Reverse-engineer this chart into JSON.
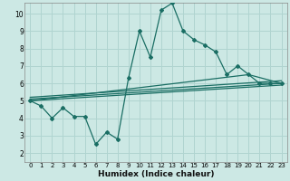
{
  "xlabel": "Humidex (Indice chaleur)",
  "bg_color": "#cce8e4",
  "grid_color": "#b0d4d0",
  "line_color": "#1a6e64",
  "xlim": [
    -0.5,
    23.5
  ],
  "ylim": [
    1.5,
    10.6
  ],
  "xticks": [
    0,
    1,
    2,
    3,
    4,
    5,
    6,
    7,
    8,
    9,
    10,
    11,
    12,
    13,
    14,
    15,
    16,
    17,
    18,
    19,
    20,
    21,
    22,
    23
  ],
  "yticks": [
    2,
    3,
    4,
    5,
    6,
    7,
    8,
    9,
    10
  ],
  "line1_x": [
    0,
    1,
    2,
    3,
    4,
    5,
    6,
    7,
    8,
    9,
    10,
    11,
    12,
    13,
    14,
    15,
    16,
    17,
    18,
    19,
    20,
    21,
    22,
    23
  ],
  "line1_y": [
    5.0,
    4.7,
    4.0,
    4.6,
    4.1,
    4.1,
    2.5,
    3.2,
    2.8,
    6.3,
    9.0,
    7.5,
    10.2,
    10.6,
    9.0,
    8.5,
    8.2,
    7.8,
    6.5,
    7.0,
    6.5,
    6.0,
    6.0,
    6.0
  ],
  "line2_x": [
    0,
    23
  ],
  "line2_y": [
    5.0,
    5.9
  ],
  "line3_x": [
    0,
    23
  ],
  "line3_y": [
    5.1,
    6.0
  ],
  "line4_x": [
    0,
    23
  ],
  "line4_y": [
    5.2,
    6.15
  ],
  "line5_x": [
    0,
    20,
    23
  ],
  "line5_y": [
    5.0,
    6.5,
    6.0
  ]
}
